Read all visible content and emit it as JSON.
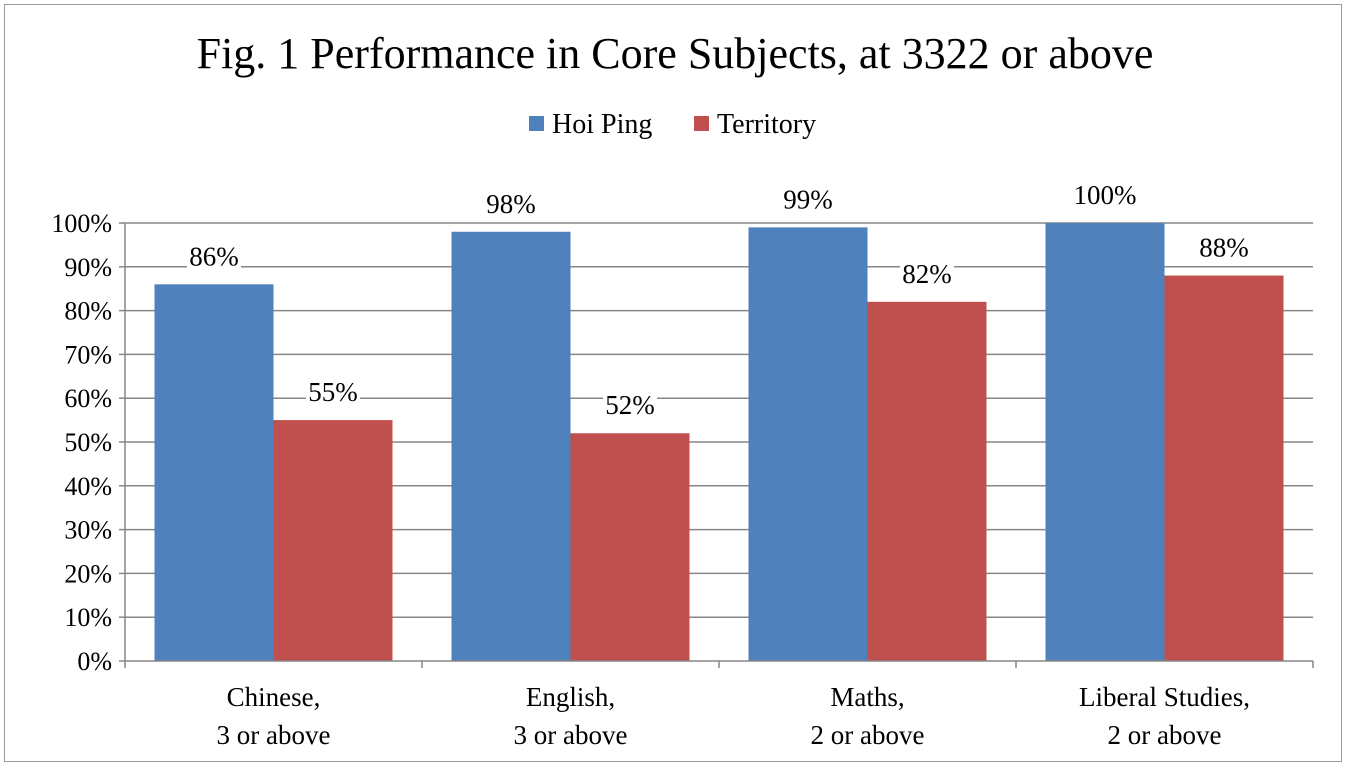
{
  "chart_data": {
    "type": "bar",
    "title": "Fig. 1 Performance in Core Subjects, at 3322 or above",
    "categories": [
      [
        "Chinese,",
        "3 or above"
      ],
      [
        "English,",
        "3 or above"
      ],
      [
        "Maths,",
        "2 or above"
      ],
      [
        "Liberal Studies,",
        "2 or above"
      ]
    ],
    "series": [
      {
        "name": "Hoi Ping",
        "color": "#4F81BD",
        "values": [
          86,
          98,
          99,
          100
        ],
        "labels": [
          "86%",
          "98%",
          "99%",
          "100%"
        ]
      },
      {
        "name": "Territory",
        "color": "#C0504D",
        "values": [
          55,
          52,
          82,
          88
        ],
        "labels": [
          "55%",
          "52%",
          "82%",
          "88%"
        ]
      }
    ],
    "ylim": [
      0,
      100
    ],
    "yticks": [
      0,
      10,
      20,
      30,
      40,
      50,
      60,
      70,
      80,
      90,
      100
    ],
    "ytick_labels": [
      "0%",
      "10%",
      "20%",
      "30%",
      "40%",
      "50%",
      "60%",
      "70%",
      "80%",
      "90%",
      "100%"
    ],
    "grid": true,
    "legend_position": "top-center"
  }
}
